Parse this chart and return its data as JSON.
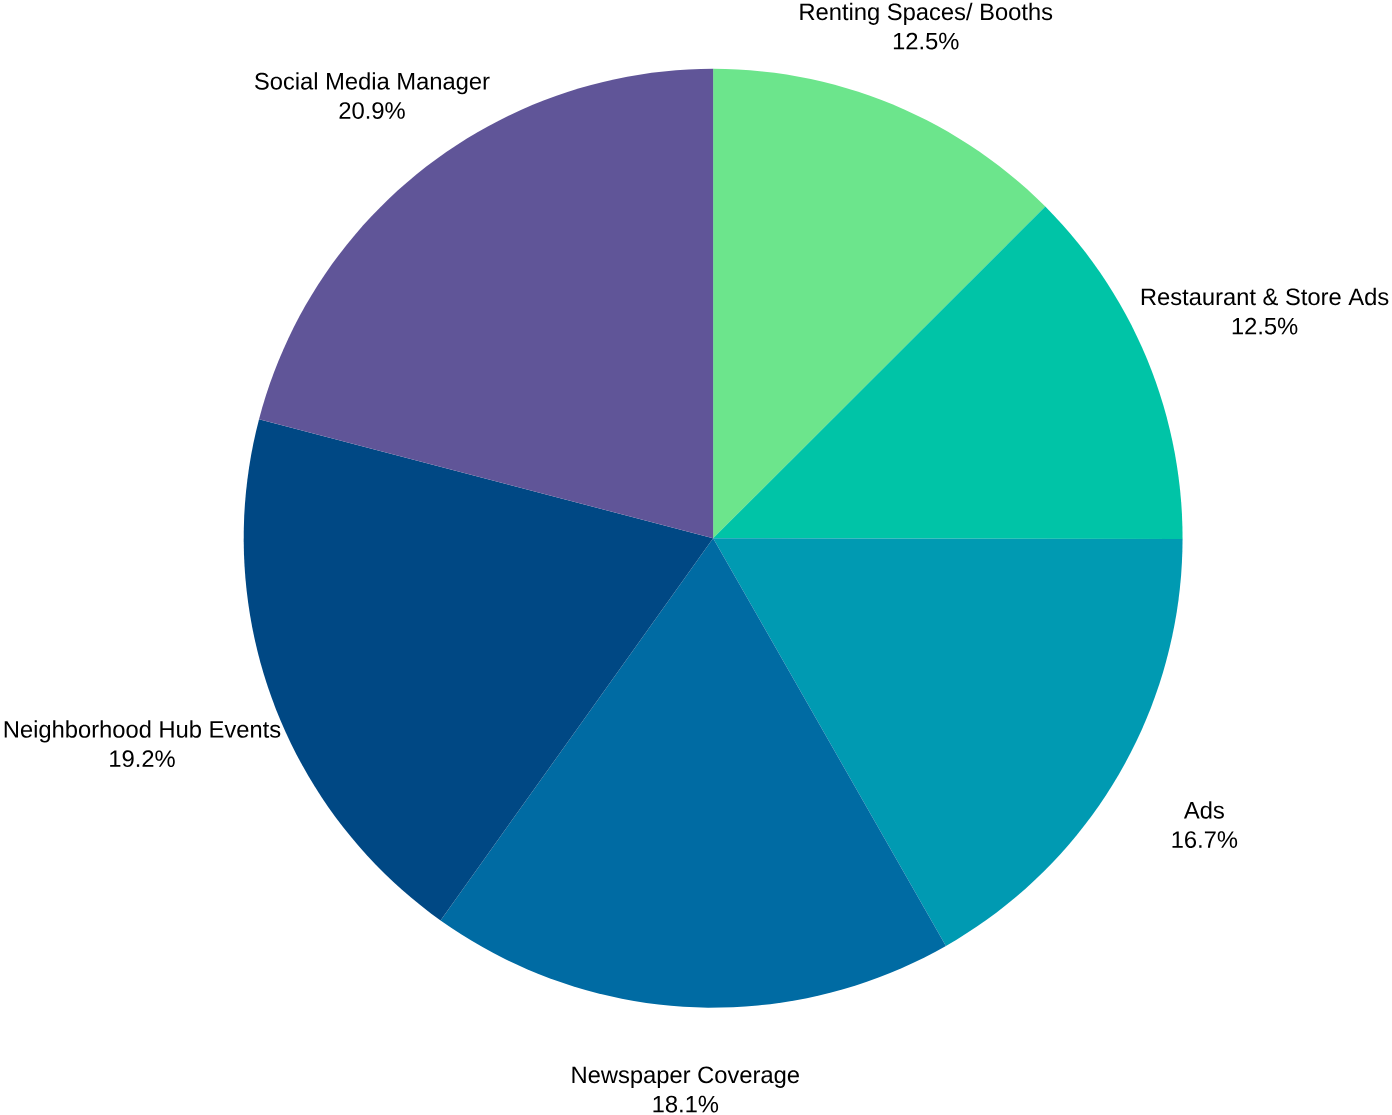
{
  "chart_data": {
    "type": "pie",
    "categories": [
      "Renting Spaces/ Booths",
      "Restaurant & Store Ads",
      "Ads",
      "Newspaper Coverage",
      "Neighborhood Hub Events",
      "Social Media Manager"
    ],
    "values": [
      12.5,
      12.5,
      16.7,
      18.1,
      19.2,
      20.9
    ],
    "value_labels": [
      "12.5%",
      "12.5%",
      "16.7%",
      "18.1%",
      "19.2%",
      "20.9%"
    ],
    "colors": [
      "#6ce58c",
      "#00c4a7",
      "#009ab2",
      "#006ba3",
      "#004884",
      "#605598"
    ]
  }
}
